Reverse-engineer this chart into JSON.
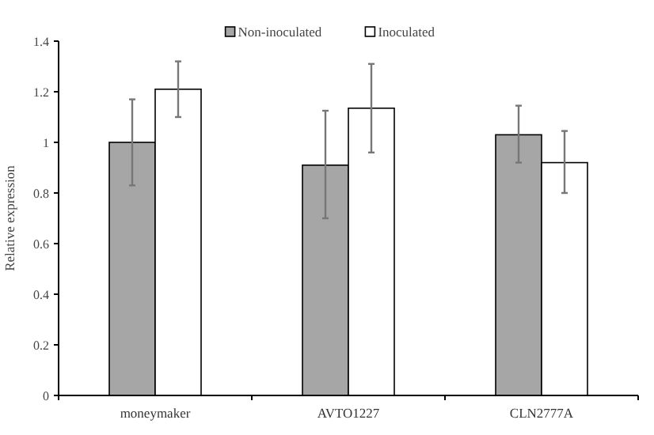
{
  "chart_data": {
    "type": "bar",
    "ylabel": "Relative expression",
    "categories": [
      "moneymaker",
      "AVTO1227",
      "CLN2777A"
    ],
    "series": [
      {
        "name": "Non-inoculated",
        "color": "#a6a6a6",
        "values": [
          1.0,
          0.91,
          1.03
        ],
        "errors": [
          [
            0.83,
            1.17
          ],
          [
            0.7,
            1.125
          ],
          [
            0.92,
            1.145
          ]
        ]
      },
      {
        "name": "Inoculated",
        "color": "#ffffff",
        "values": [
          1.21,
          1.135,
          0.92
        ],
        "errors": [
          [
            1.1,
            1.32
          ],
          [
            0.96,
            1.31
          ],
          [
            0.8,
            1.045
          ]
        ]
      }
    ],
    "ylim": [
      0,
      1.4
    ],
    "yticks": [
      0,
      0.2,
      0.4,
      0.6,
      0.8,
      1,
      1.2,
      1.4
    ],
    "legend": "top"
  }
}
